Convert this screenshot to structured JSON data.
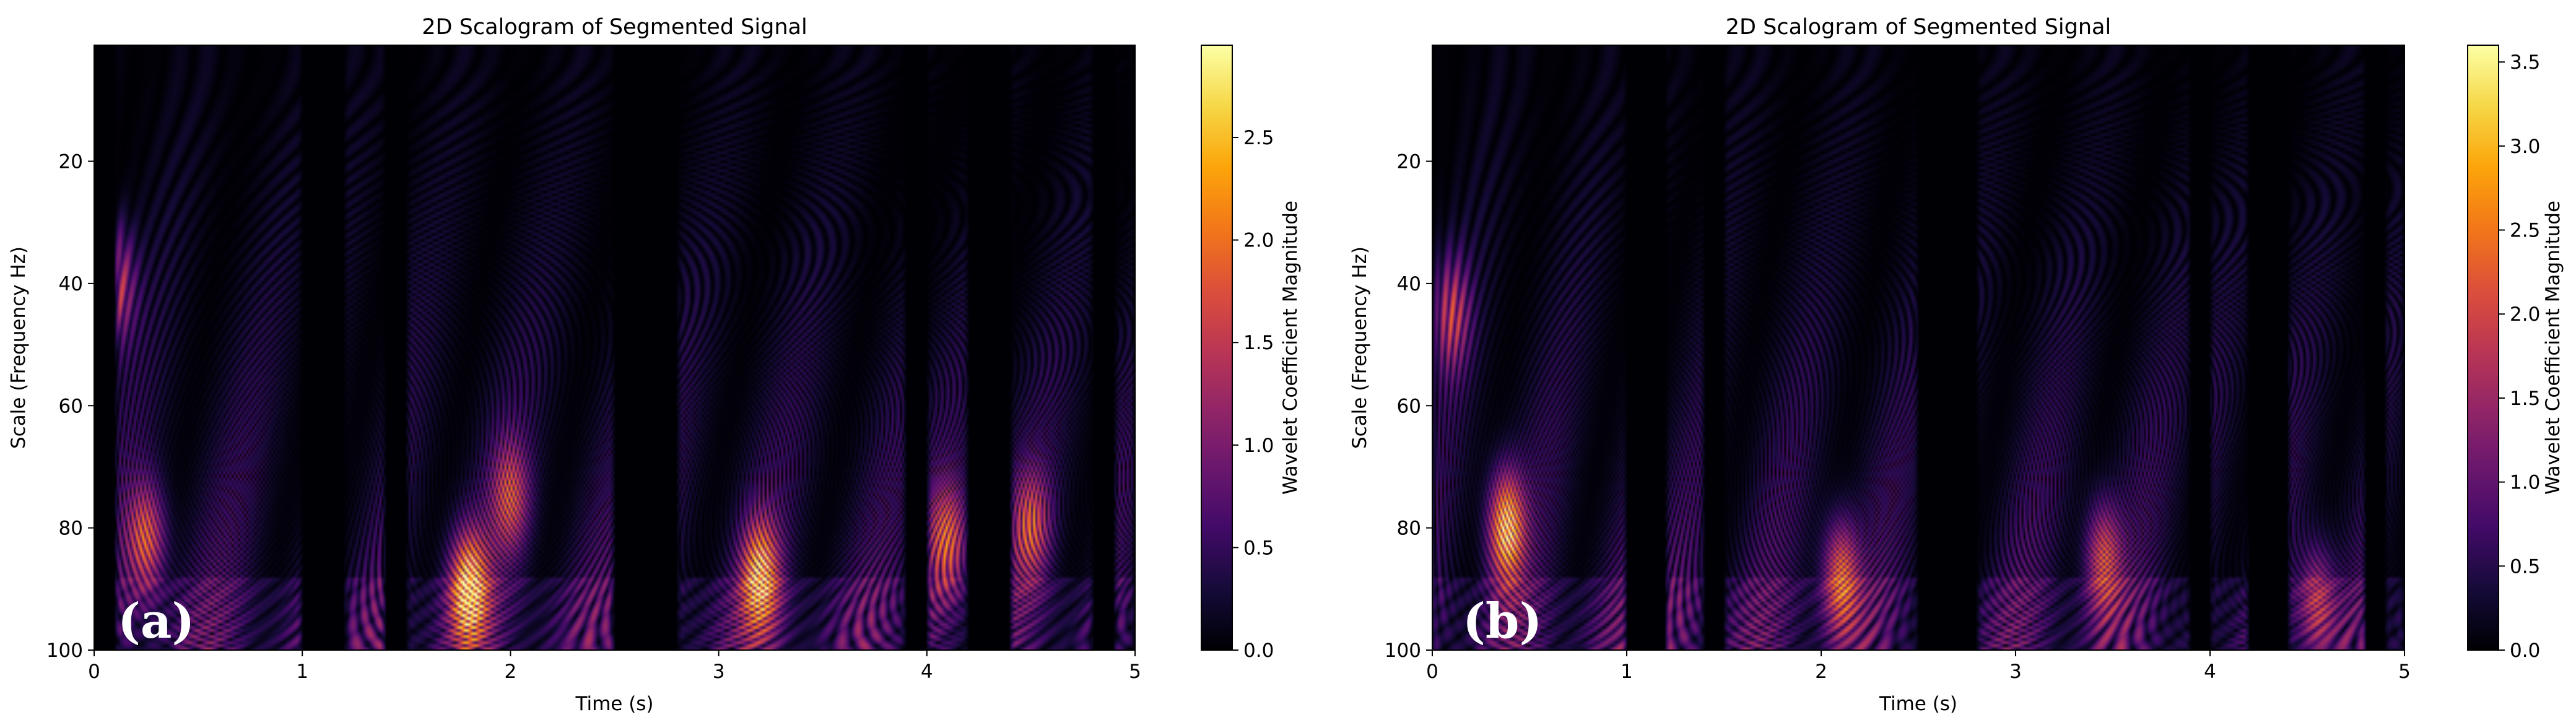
{
  "chart_data": [
    {
      "type": "heatmap",
      "panel_label": "(a)",
      "title": "2D Scalogram of Segmented Signal",
      "xlabel": "Time (s)",
      "ylabel": "Scale (Frequency Hz)",
      "xlim": [
        0,
        5
      ],
      "ylim": [
        100,
        1
      ],
      "xticks": [
        0,
        1,
        2,
        3,
        4,
        5
      ],
      "yticks": [
        20,
        40,
        60,
        80,
        100
      ],
      "colormap": "inferno",
      "colorbar": {
        "label": "Wavelet Coefficient Magnitude",
        "range": [
          0,
          2.95
        ],
        "ticks": [
          0.0,
          0.5,
          1.0,
          1.5,
          2.0,
          2.5
        ],
        "tick_labels": [
          "0.0",
          "0.5",
          "1.0",
          "1.5",
          "2.0",
          "2.5"
        ]
      },
      "active_segments": [
        [
          0.1,
          1.0
        ],
        [
          1.2,
          1.4
        ],
        [
          1.5,
          2.5
        ],
        [
          2.8,
          3.9
        ],
        [
          4.0,
          4.2
        ],
        [
          4.4,
          4.8
        ],
        [
          4.9,
          5.0
        ]
      ],
      "hotspots": [
        {
          "t": 0.1,
          "scale": 40,
          "magnitude": 1.8
        },
        {
          "t": 0.25,
          "scale": 82,
          "magnitude": 2.0
        },
        {
          "t": 1.8,
          "scale": 90,
          "magnitude": 2.9
        },
        {
          "t": 2.0,
          "scale": 75,
          "magnitude": 1.6
        },
        {
          "t": 3.2,
          "scale": 88,
          "magnitude": 2.5
        },
        {
          "t": 4.1,
          "scale": 82,
          "magnitude": 1.8
        },
        {
          "t": 4.5,
          "scale": 80,
          "magnitude": 1.6
        }
      ]
    },
    {
      "type": "heatmap",
      "panel_label": "(b)",
      "title": "2D Scalogram of Segmented Signal",
      "xlabel": "Time (s)",
      "ylabel": "Scale (Frequency Hz)",
      "xlim": [
        0,
        5
      ],
      "ylim": [
        100,
        1
      ],
      "xticks": [
        0,
        1,
        2,
        3,
        4,
        5
      ],
      "yticks": [
        20,
        40,
        60,
        80,
        100
      ],
      "colormap": "inferno",
      "colorbar": {
        "label": "Wavelet Coefficient Magnitude",
        "range": [
          0,
          3.6
        ],
        "ticks": [
          0.0,
          0.5,
          1.0,
          1.5,
          2.0,
          2.5,
          3.0,
          3.5
        ],
        "tick_labels": [
          "0.0",
          "0.5",
          "1.0",
          "1.5",
          "2.0",
          "2.5",
          "3.0",
          "3.5"
        ]
      },
      "active_segments": [
        [
          0.0,
          1.0
        ],
        [
          1.2,
          1.4
        ],
        [
          1.5,
          2.5
        ],
        [
          2.8,
          3.9
        ],
        [
          4.0,
          4.2
        ],
        [
          4.4,
          4.8
        ],
        [
          4.9,
          5.0
        ]
      ],
      "hotspots": [
        {
          "t": 0.1,
          "scale": 45,
          "magnitude": 1.9
        },
        {
          "t": 0.38,
          "scale": 80,
          "magnitude": 3.5
        },
        {
          "t": 2.1,
          "scale": 88,
          "magnitude": 2.6
        },
        {
          "t": 3.45,
          "scale": 85,
          "magnitude": 2.2
        },
        {
          "t": 4.55,
          "scale": 92,
          "magnitude": 1.9
        }
      ]
    }
  ]
}
